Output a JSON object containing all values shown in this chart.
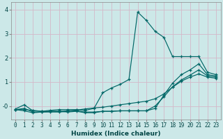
{
  "xlabel": "Humidex (Indice chaleur)",
  "bg_color": "#cce8e8",
  "grid_color": "#d4b8c8",
  "line_color": "#006666",
  "marker": "+",
  "xlim": [
    -0.5,
    23.5
  ],
  "ylim": [
    -0.55,
    4.3
  ],
  "yticks": [
    0,
    1,
    2,
    3,
    4
  ],
  "ytick_labels": [
    "-0",
    "1",
    "2",
    "3",
    "4"
  ],
  "xticks": [
    0,
    1,
    2,
    3,
    4,
    5,
    6,
    7,
    8,
    9,
    10,
    11,
    12,
    13,
    14,
    15,
    16,
    17,
    18,
    19,
    20,
    21,
    22,
    23
  ],
  "series": [
    [
      -0.15,
      -0.15,
      -0.18,
      -0.22,
      -0.18,
      -0.15,
      -0.15,
      -0.15,
      -0.18,
      -0.1,
      0.55,
      0.75,
      0.9,
      1.1,
      3.9,
      3.55,
      3.1,
      2.85,
      2.05,
      2.05,
      2.05,
      2.05,
      1.4,
      1.3
    ],
    [
      -0.15,
      -0.2,
      -0.28,
      -0.25,
      -0.22,
      -0.22,
      -0.25,
      -0.22,
      -0.28,
      -0.28,
      -0.22,
      -0.22,
      -0.2,
      -0.2,
      -0.2,
      -0.2,
      -0.1,
      0.45,
      0.95,
      1.3,
      1.5,
      1.75,
      1.3,
      1.25
    ],
    [
      -0.15,
      -0.1,
      -0.25,
      -0.25,
      -0.25,
      -0.25,
      -0.22,
      -0.2,
      -0.25,
      -0.25,
      -0.22,
      -0.22,
      -0.2,
      -0.2,
      -0.2,
      -0.2,
      0.0,
      0.38,
      0.8,
      1.08,
      1.28,
      1.5,
      1.25,
      1.2
    ],
    [
      -0.12,
      0.05,
      -0.2,
      -0.22,
      -0.22,
      -0.22,
      -0.2,
      -0.17,
      -0.12,
      -0.08,
      -0.05,
      0.0,
      0.05,
      0.1,
      0.15,
      0.2,
      0.3,
      0.5,
      0.78,
      1.03,
      1.2,
      1.33,
      1.2,
      1.15
    ]
  ],
  "tick_fontsize": 5.5,
  "xlabel_fontsize": 6.5,
  "tick_color": "#004444",
  "spine_color": "#888888"
}
